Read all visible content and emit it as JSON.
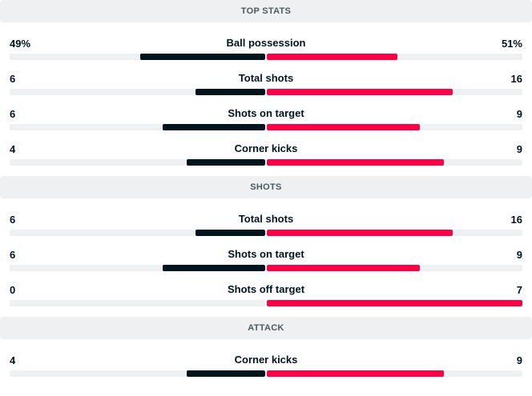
{
  "colors": {
    "home": "#00141e",
    "away": "#ff0046",
    "track": "#eef0f1",
    "header_bg": "#eef0f1"
  },
  "sections": [
    {
      "title": "TOP STATS",
      "stats": [
        {
          "label": "Ball possession",
          "home": "49%",
          "away": "51%",
          "home_share": 0.49,
          "away_share": 0.51
        },
        {
          "label": "Total shots",
          "home": "6",
          "away": "16",
          "home_share": 0.273,
          "away_share": 0.727
        },
        {
          "label": "Shots on target",
          "home": "6",
          "away": "9",
          "home_share": 0.4,
          "away_share": 0.6
        },
        {
          "label": "Corner kicks",
          "home": "4",
          "away": "9",
          "home_share": 0.308,
          "away_share": 0.692
        }
      ]
    },
    {
      "title": "SHOTS",
      "stats": [
        {
          "label": "Total shots",
          "home": "6",
          "away": "16",
          "home_share": 0.273,
          "away_share": 0.727
        },
        {
          "label": "Shots on target",
          "home": "6",
          "away": "9",
          "home_share": 0.4,
          "away_share": 0.6
        },
        {
          "label": "Shots off target",
          "home": "0",
          "away": "7",
          "home_share": 0.0,
          "away_share": 1.0
        }
      ]
    },
    {
      "title": "ATTACK",
      "stats": [
        {
          "label": "Corner kicks",
          "home": "4",
          "away": "9",
          "home_share": 0.308,
          "away_share": 0.692
        }
      ]
    }
  ]
}
